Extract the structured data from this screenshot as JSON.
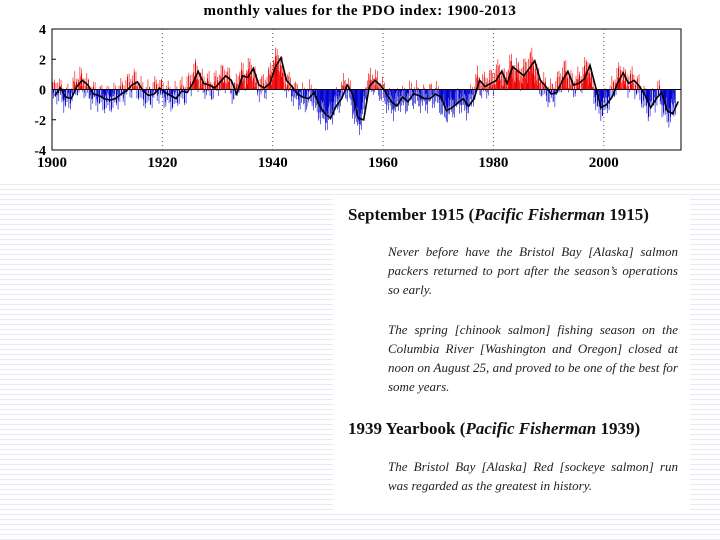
{
  "chart_data": {
    "type": "area",
    "title": "monthly values for the PDO index: 1900-2013",
    "xlim": [
      1900,
      2014
    ],
    "ylim": [
      -4,
      4
    ],
    "x_ticks": [
      1900,
      1920,
      1940,
      1960,
      1980,
      2000
    ],
    "y_ticks": [
      4,
      2,
      0,
      -2,
      -4
    ],
    "positive_color": "#ee0000",
    "negative_color": "#0000cc",
    "smooth_color": "#000000",
    "series": [
      {
        "values": [
          [
            1900,
            -0.4
          ],
          [
            1901,
            0.1
          ],
          [
            1902,
            -0.5
          ],
          [
            1903,
            -0.6
          ],
          [
            1904,
            0.2
          ],
          [
            1905,
            0.6
          ],
          [
            1906,
            0.3
          ],
          [
            1907,
            -0.3
          ],
          [
            1908,
            -0.4
          ],
          [
            1909,
            -0.6
          ],
          [
            1910,
            -0.7
          ],
          [
            1911,
            -0.6
          ],
          [
            1912,
            -0.3
          ],
          [
            1913,
            -0.1
          ],
          [
            1914,
            0.3
          ],
          [
            1915,
            0.5
          ],
          [
            1916,
            -0.1
          ],
          [
            1917,
            -0.4
          ],
          [
            1918,
            -0.3
          ],
          [
            1919,
            0.1
          ],
          [
            1920,
            -0.2
          ],
          [
            1921,
            -0.4
          ],
          [
            1922,
            -0.6
          ],
          [
            1923,
            -0.1
          ],
          [
            1924,
            -0.2
          ],
          [
            1925,
            0.4
          ],
          [
            1926,
            1.2
          ],
          [
            1927,
            0.4
          ],
          [
            1928,
            0.3
          ],
          [
            1929,
            0.1
          ],
          [
            1930,
            0.5
          ],
          [
            1931,
            0.9
          ],
          [
            1932,
            0.6
          ],
          [
            1933,
            -0.3
          ],
          [
            1934,
            0.9
          ],
          [
            1935,
            0.8
          ],
          [
            1936,
            1.4
          ],
          [
            1937,
            0.3
          ],
          [
            1938,
            0.1
          ],
          [
            1939,
            0.4
          ],
          [
            1940,
            1.5
          ],
          [
            1941,
            2.1
          ],
          [
            1942,
            0.6
          ],
          [
            1943,
            0.2
          ],
          [
            1944,
            -0.3
          ],
          [
            1945,
            -0.5
          ],
          [
            1946,
            -0.6
          ],
          [
            1947,
            -0.2
          ],
          [
            1948,
            -1.1
          ],
          [
            1949,
            -1.6
          ],
          [
            1950,
            -1.9
          ],
          [
            1951,
            -1.1
          ],
          [
            1952,
            -0.6
          ],
          [
            1953,
            0.3
          ],
          [
            1954,
            -0.3
          ],
          [
            1955,
            -1.9
          ],
          [
            1956,
            -2.0
          ],
          [
            1957,
            0.2
          ],
          [
            1958,
            0.6
          ],
          [
            1959,
            0.3
          ],
          [
            1960,
            -0.2
          ],
          [
            1961,
            -0.8
          ],
          [
            1962,
            -1.1
          ],
          [
            1963,
            -0.5
          ],
          [
            1964,
            -0.8
          ],
          [
            1965,
            -0.3
          ],
          [
            1966,
            -0.4
          ],
          [
            1967,
            -0.6
          ],
          [
            1968,
            -0.6
          ],
          [
            1969,
            -0.3
          ],
          [
            1970,
            -0.5
          ],
          [
            1971,
            -1.4
          ],
          [
            1972,
            -1.2
          ],
          [
            1973,
            -0.9
          ],
          [
            1974,
            -0.6
          ],
          [
            1975,
            -1.1
          ],
          [
            1976,
            -0.6
          ],
          [
            1977,
            0.6
          ],
          [
            1978,
            0.2
          ],
          [
            1979,
            0.4
          ],
          [
            1980,
            0.6
          ],
          [
            1981,
            1.2
          ],
          [
            1982,
            0.4
          ],
          [
            1983,
            1.5
          ],
          [
            1984,
            1.2
          ],
          [
            1985,
            0.9
          ],
          [
            1986,
            1.4
          ],
          [
            1987,
            1.9
          ],
          [
            1988,
            0.6
          ],
          [
            1989,
            0.2
          ],
          [
            1990,
            -0.3
          ],
          [
            1991,
            -0.2
          ],
          [
            1992,
            0.6
          ],
          [
            1993,
            1.2
          ],
          [
            1994,
            0.3
          ],
          [
            1995,
            0.4
          ],
          [
            1996,
            0.7
          ],
          [
            1997,
            1.6
          ],
          [
            1998,
            0.2
          ],
          [
            1999,
            -1.2
          ],
          [
            2000,
            -1.0
          ],
          [
            2001,
            -0.5
          ],
          [
            2002,
            0.4
          ],
          [
            2003,
            1.1
          ],
          [
            2004,
            0.4
          ],
          [
            2005,
            0.6
          ],
          [
            2006,
            0.2
          ],
          [
            2007,
            -0.4
          ],
          [
            2008,
            -1.2
          ],
          [
            2009,
            -0.6
          ],
          [
            2010,
            -0.2
          ],
          [
            2011,
            -1.4
          ],
          [
            2012,
            -1.6
          ],
          [
            2013,
            -0.8
          ]
        ]
      }
    ]
  },
  "slide": {
    "heading1": {
      "prefix": "September 1915 (",
      "italic": "Pacific Fisherman",
      "suffix": " 1915)"
    },
    "quote1": "Never before have the Bristol Bay [Alaska] salmon packers returned to port after the season’s operations so early.",
    "quote2": "The spring [chinook salmon] fishing season on the Columbia River [Washington and Oregon] closed at noon on August 25, and proved to be one of the best for some years.",
    "heading2": {
      "prefix": "1939 Yearbook (",
      "italic": "Pacific Fisherman",
      "suffix": " 1939)"
    },
    "quote3": "The Bristol Bay [Alaska] Red [sockeye salmon] run was regarded as the greatest in history."
  }
}
